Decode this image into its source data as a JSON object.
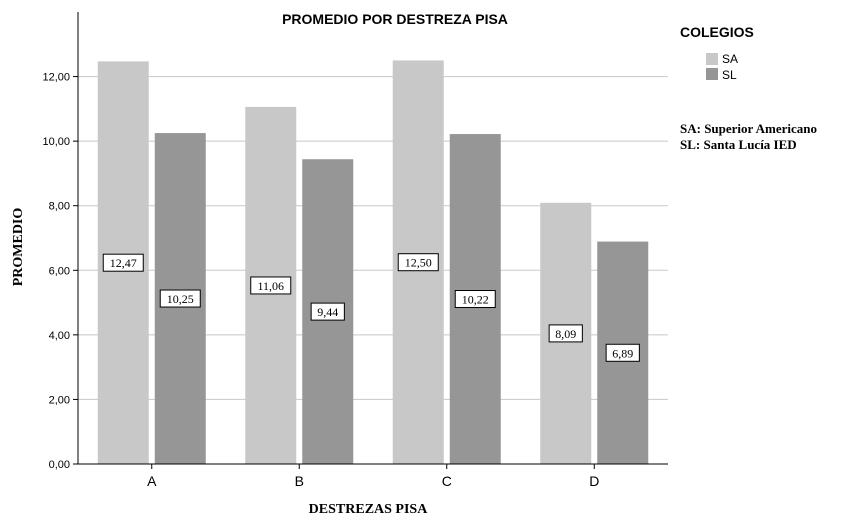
{
  "chart_data": {
    "type": "bar",
    "title": "PROMEDIO POR DESTREZA PISA",
    "xlabel": "DESTREZAS PISA",
    "ylabel": "PROMEDIO",
    "categories": [
      "A",
      "B",
      "C",
      "D"
    ],
    "series": [
      {
        "name": "SA",
        "values": [
          12.47,
          11.06,
          12.5,
          8.09
        ],
        "labels": [
          "12,47",
          "11,06",
          "12,50",
          "8,09"
        ],
        "color": "#c8c8c8"
      },
      {
        "name": "SL",
        "values": [
          10.25,
          9.44,
          10.22,
          6.89
        ],
        "labels": [
          "10,25",
          "9,44",
          "10,22",
          "6,89"
        ],
        "color": "#969696"
      }
    ],
    "ylim": [
      0,
      14
    ],
    "yticks": [
      0,
      2,
      4,
      6,
      8,
      10,
      12
    ],
    "ytick_labels": [
      "0,00",
      "2,00",
      "4,00",
      "6,00",
      "8,00",
      "10,00",
      "12,00"
    ],
    "grid": true,
    "legend_position": "top-right",
    "legend_title": "COLEGIOS",
    "notes": [
      "SA: Superior Americano",
      "SL: Santa Lucía IED"
    ]
  }
}
